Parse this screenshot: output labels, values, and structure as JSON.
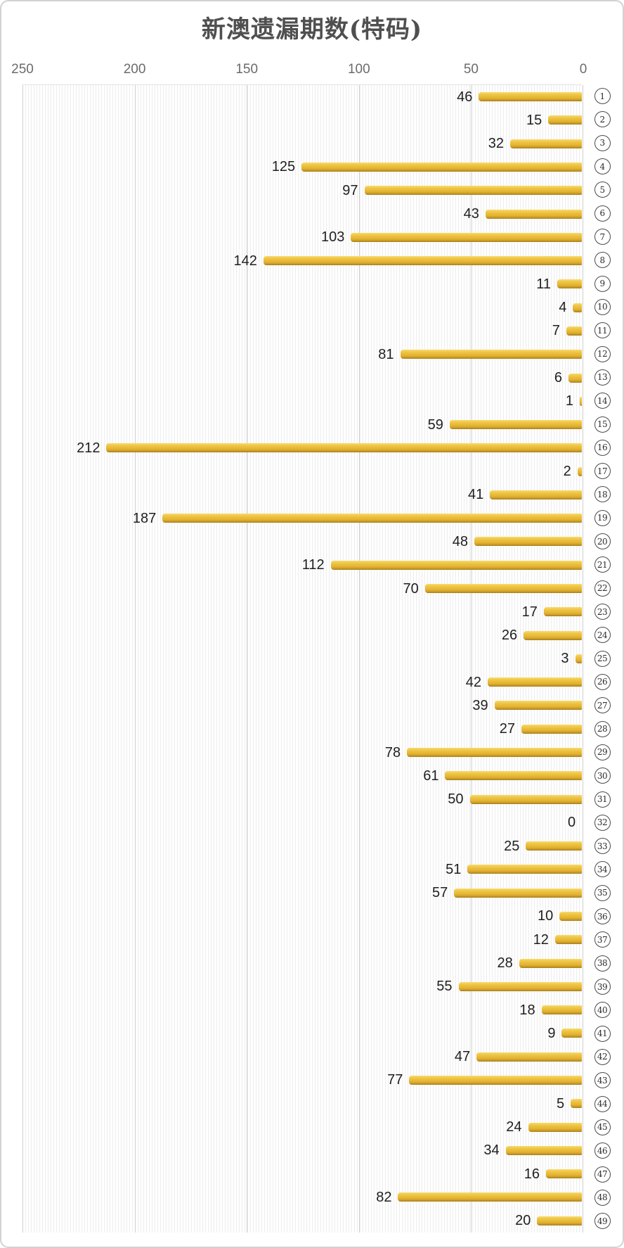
{
  "chart": {
    "title": "新澳遗漏期数(特码)"
  },
  "chart_data": {
    "type": "bar",
    "orientation": "horizontal",
    "title": "新澳遗漏期数(特码)",
    "categories": [
      "1",
      "2",
      "3",
      "4",
      "5",
      "6",
      "7",
      "8",
      "9",
      "10",
      "11",
      "12",
      "13",
      "14",
      "15",
      "16",
      "17",
      "18",
      "19",
      "20",
      "21",
      "22",
      "23",
      "24",
      "25",
      "26",
      "27",
      "28",
      "29",
      "30",
      "31",
      "32",
      "33",
      "34",
      "35",
      "36",
      "37",
      "38",
      "39",
      "40",
      "41",
      "42",
      "43",
      "44",
      "45",
      "46",
      "47",
      "48",
      "49"
    ],
    "category_style": "circled-number",
    "values": [
      46,
      15,
      32,
      125,
      97,
      43,
      103,
      142,
      11,
      4,
      7,
      81,
      6,
      1,
      59,
      212,
      2,
      41,
      187,
      48,
      112,
      70,
      17,
      26,
      3,
      42,
      39,
      27,
      78,
      61,
      50,
      0,
      25,
      51,
      57,
      10,
      12,
      28,
      55,
      18,
      9,
      47,
      77,
      5,
      24,
      34,
      16,
      82,
      20
    ],
    "value_labels": true,
    "x_axis": {
      "ticks": [
        250,
        200,
        150,
        100,
        50,
        0
      ],
      "min": 0,
      "max": 250,
      "reversed": true
    },
    "grid": true,
    "legend": "none",
    "colors": {
      "bar": "#E7BA39",
      "bar_light": "#F7DC70",
      "bar_dark": "#A37C1B",
      "gridline": "#CFCFCF",
      "stripe": "#EDEDED",
      "title_text": "#4F4F4F",
      "axis_text": "#6B6B6B",
      "value_text": "#1F1F1F"
    }
  }
}
